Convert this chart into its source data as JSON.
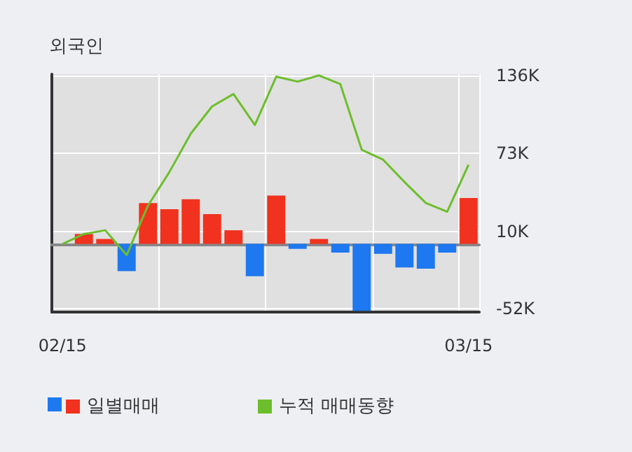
{
  "chart_data": {
    "type": "bar",
    "title": "외국인",
    "categories": [
      "02/15",
      null,
      null,
      null,
      null,
      null,
      null,
      null,
      null,
      null,
      null,
      null,
      null,
      null,
      null,
      null,
      null,
      null,
      null,
      "03/15"
    ],
    "series": [
      {
        "name": "일별매매",
        "values": [
          0,
          8,
          4,
          -22,
          33,
          28,
          36,
          24,
          11,
          -26,
          39,
          -4,
          4,
          -7,
          -54,
          -8,
          -19,
          -20,
          -7,
          37
        ],
        "colors": [
          "#f0321e",
          "#f0321e",
          "#f0321e",
          "#1e78f0",
          "#f0321e",
          "#f0321e",
          "#f0321e",
          "#f0321e",
          "#f0321e",
          "#1e78f0",
          "#f0321e",
          "#1e78f0",
          "#f0321e",
          "#1e78f0",
          "#1e78f0",
          "#1e78f0",
          "#1e78f0",
          "#1e78f0",
          "#1e78f0",
          "#f0321e"
        ]
      },
      {
        "name": "누적 매매동향",
        "type": "line",
        "color": "#6dbe2c",
        "values": [
          0,
          8,
          11,
          -9,
          31,
          58,
          89,
          111,
          121,
          96,
          135,
          131,
          136,
          129,
          76,
          68,
          50,
          33,
          26,
          64
        ]
      }
    ],
    "ylim": [
      -55,
      137
    ],
    "yticks": [
      {
        "value": -52,
        "label": "-52K"
      },
      {
        "value": 10,
        "label": "10K"
      },
      {
        "value": 73,
        "label": "73K"
      },
      {
        "value": 136,
        "label": "136K"
      }
    ],
    "grid": true,
    "legend": "bottom",
    "marker": "none",
    "line_style": "solid"
  }
}
